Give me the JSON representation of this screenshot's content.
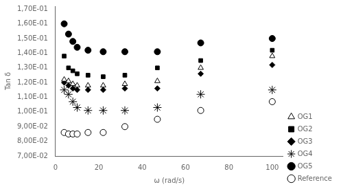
{
  "chart_data": {
    "type": "scatter",
    "xlabel": "ω (rad/s)",
    "ylabel": "Tan δ",
    "x": [
      4,
      6,
      8,
      10,
      15,
      22,
      32,
      47,
      67,
      100
    ],
    "series": [
      {
        "name": "OG1",
        "values": [
          0.122,
          0.121,
          0.119,
          0.118,
          0.118,
          0.118,
          0.119,
          0.121,
          0.13,
          0.138
        ],
        "marker": "open_triangle",
        "color": "black"
      },
      {
        "name": "OG2",
        "values": [
          0.138,
          0.13,
          0.128,
          0.126,
          0.125,
          0.124,
          0.125,
          0.13,
          0.135,
          0.142
        ],
        "marker": "square",
        "color": "black"
      },
      {
        "name": "OG3",
        "values": [
          0.12,
          0.118,
          0.116,
          0.115,
          0.115,
          0.115,
          0.116,
          0.116,
          0.126,
          0.132
        ],
        "marker": "diamond",
        "color": "black"
      },
      {
        "name": "OG4",
        "values": [
          0.115,
          0.112,
          0.107,
          0.103,
          0.101,
          0.101,
          0.101,
          0.103,
          0.112,
          0.115
        ],
        "marker": "star",
        "color": "black"
      },
      {
        "name": "OG5",
        "values": [
          0.16,
          0.153,
          0.148,
          0.144,
          0.142,
          0.141,
          0.141,
          0.141,
          0.147,
          0.15
        ],
        "marker": "circle",
        "color": "black"
      },
      {
        "name": "Reference",
        "values": [
          0.086,
          0.085,
          0.085,
          0.085,
          0.086,
          0.086,
          0.09,
          0.095,
          0.101,
          0.107
        ],
        "marker": "open_circle",
        "color": "black"
      }
    ],
    "xlim": [
      0,
      105
    ],
    "xticks": [
      0,
      20,
      40,
      60,
      80,
      100
    ],
    "ylim": [
      0.07,
      0.172
    ],
    "yticks": [
      {
        "value": 0.07,
        "label": "7,00E-02"
      },
      {
        "value": 0.08,
        "label": "8,00E-02"
      },
      {
        "value": 0.09,
        "label": "9,00E-02"
      },
      {
        "value": 0.1,
        "label": "1,00E-01"
      },
      {
        "value": 0.11,
        "label": "1,10E-01"
      },
      {
        "value": 0.12,
        "label": "1,20E-01"
      },
      {
        "value": 0.13,
        "label": "1,30E-01"
      },
      {
        "value": 0.14,
        "label": "1,40E-01"
      },
      {
        "value": 0.15,
        "label": "1,50E-01"
      },
      {
        "value": 0.16,
        "label": "1,60E-01"
      },
      {
        "value": 0.17,
        "label": "1,70E-01"
      }
    ],
    "grid": false,
    "legend": "lower right"
  }
}
